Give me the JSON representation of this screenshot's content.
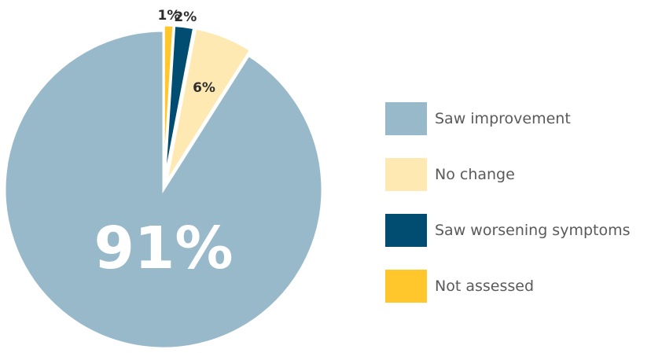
{
  "chart_data": {
    "type": "pie",
    "start_angle_deg": 0,
    "direction": "clockwise",
    "slices": [
      {
        "label": "Not assessed",
        "value": 1,
        "display": "1%",
        "color": "#FFC72C"
      },
      {
        "label": "Saw worsening symptoms",
        "value": 2,
        "display": "2%",
        "color": "#004D71"
      },
      {
        "label": "No change",
        "value": 6,
        "display": "6%",
        "color": "#FFE9B3"
      },
      {
        "label": "Saw improvement",
        "value": 91,
        "display": "91%",
        "color": "#98B9C9"
      }
    ],
    "legend_order": [
      "Saw improvement",
      "No change",
      "Saw worsening symptoms",
      "Not assessed"
    ],
    "legend_position": "right",
    "title": "",
    "xlabel": "",
    "ylabel": ""
  }
}
